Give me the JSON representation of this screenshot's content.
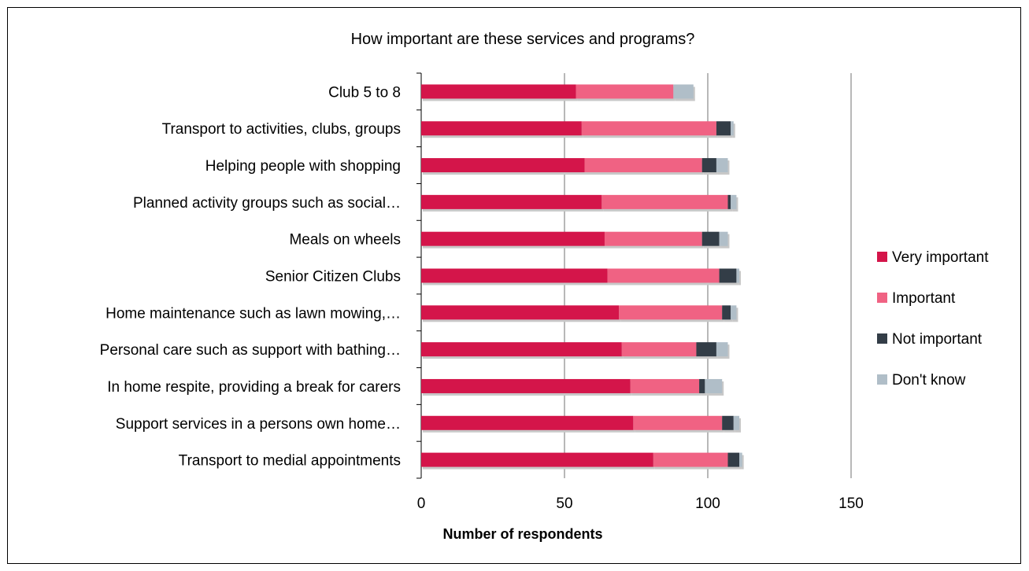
{
  "chart_data": {
    "type": "bar",
    "orientation": "horizontal",
    "stacked": true,
    "title": "How important are these services and programs?",
    "xlabel": "Number of respondents",
    "ylabel": "",
    "xlim": [
      0,
      150
    ],
    "xticks": [
      0,
      50,
      100,
      150
    ],
    "grid": true,
    "legend_position": "right",
    "categories": [
      "Club 5 to 8",
      "Transport to activities, clubs, groups",
      "Helping people with shopping",
      "Planned activity groups such as social…",
      "Meals on wheels",
      "Senior Citizen Clubs",
      "Home maintenance such as lawn mowing,…",
      "Personal care such as support with bathing…",
      "In home respite, providing a break for carers",
      "Support services in a persons own home…",
      "Transport to medial appointments"
    ],
    "series": [
      {
        "name": "Very important",
        "color": "#d4154a",
        "values": [
          54,
          56,
          57,
          63,
          64,
          65,
          69,
          70,
          73,
          74,
          81
        ]
      },
      {
        "name": "Important",
        "color": "#f06283",
        "values": [
          34,
          47,
          41,
          44,
          34,
          39,
          36,
          26,
          24,
          31,
          26
        ]
      },
      {
        "name": "Not important",
        "color": "#333d47",
        "values": [
          0,
          5,
          5,
          1,
          6,
          6,
          3,
          7,
          2,
          4,
          4
        ]
      },
      {
        "name": "Don't know",
        "color": "#b0bec8",
        "values": [
          7,
          1,
          4,
          2,
          3,
          1,
          2,
          4,
          6,
          2,
          1
        ]
      }
    ]
  }
}
